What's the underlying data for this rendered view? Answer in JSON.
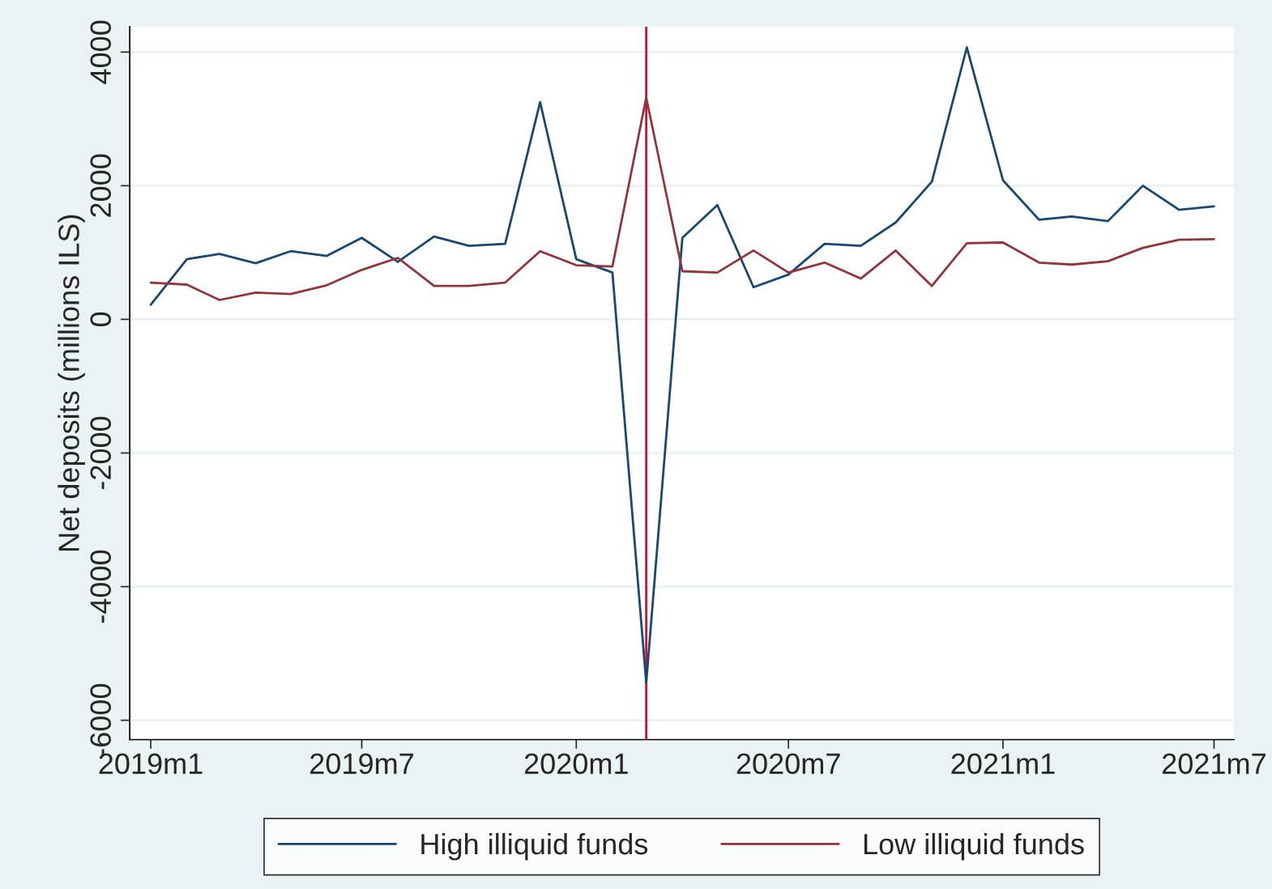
{
  "chart_data": {
    "type": "line",
    "ylabel": "Net deposits (millions ILS)",
    "x": [
      "2019-01",
      "2019-02",
      "2019-03",
      "2019-04",
      "2019-05",
      "2019-06",
      "2019-07",
      "2019-08",
      "2019-09",
      "2019-10",
      "2019-11",
      "2019-12",
      "2020-01",
      "2020-02",
      "2020-03",
      "2020-04",
      "2020-05",
      "2020-06",
      "2020-07",
      "2020-08",
      "2020-09",
      "2020-10",
      "2020-11",
      "2020-12",
      "2021-01",
      "2021-02",
      "2021-03",
      "2021-04",
      "2021-05",
      "2021-06",
      "2021-07"
    ],
    "series": [
      {
        "name": "High illiquid funds",
        "color": "#1a476f",
        "values": [
          220,
          900,
          980,
          840,
          1020,
          950,
          1220,
          860,
          1240,
          1100,
          1130,
          3250,
          900,
          700,
          -5440,
          1220,
          1710,
          480,
          670,
          1130,
          1100,
          1450,
          2060,
          4070,
          2080,
          1490,
          1540,
          1470,
          2000,
          1640,
          1690
        ]
      },
      {
        "name": "Low illiquid funds",
        "color": "#90353b",
        "values": [
          550,
          520,
          290,
          400,
          380,
          510,
          740,
          920,
          500,
          500,
          550,
          1020,
          810,
          790,
          3320,
          720,
          700,
          1030,
          700,
          850,
          610,
          1030,
          500,
          1140,
          1150,
          850,
          820,
          870,
          1070,
          1190,
          1200
        ]
      }
    ],
    "xlim": [
      "2018-12-14",
      "2021-07-18"
    ],
    "xticks": [
      {
        "value": "2019-01",
        "label": "2019m1"
      },
      {
        "value": "2019-07",
        "label": "2019m7"
      },
      {
        "value": "2020-01",
        "label": "2020m1"
      },
      {
        "value": "2020-07",
        "label": "2020m7"
      },
      {
        "value": "2021-01",
        "label": "2021m1"
      },
      {
        "value": "2021-07",
        "label": "2021m7"
      }
    ],
    "ylim": [
      -6290,
      4380
    ],
    "yticks": [
      -6000,
      -4000,
      -2000,
      0,
      2000,
      4000
    ],
    "ref_lines": [
      {
        "axis": "x",
        "value": "2020-03",
        "label": null,
        "color": "#d0103a"
      }
    ],
    "grid": "y",
    "legend": "bottom",
    "line_style": "solid",
    "marker": "none"
  }
}
